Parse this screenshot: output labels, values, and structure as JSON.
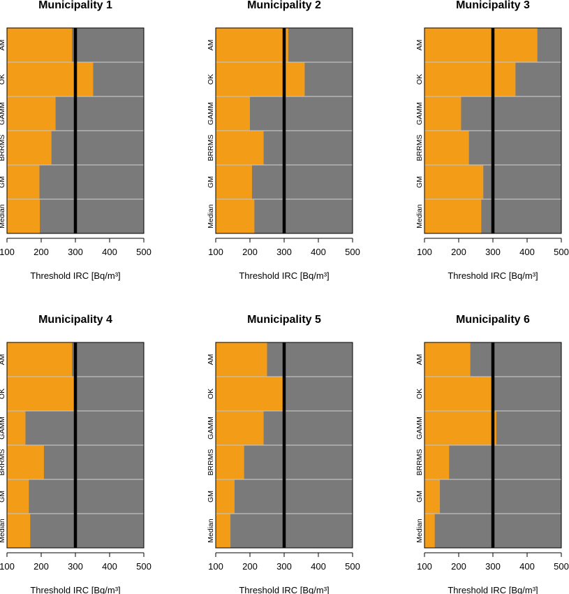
{
  "chart_data": [
    {
      "type": "bar",
      "orientation": "horizontal",
      "title": "Municipality 1",
      "categories": [
        "AM",
        "OK",
        "GAMM",
        "BRRMS",
        "GM",
        "Median"
      ],
      "values": [
        290,
        352,
        242,
        230,
        195,
        196
      ],
      "xlabel": "Threshold IRC [Bq/m³]",
      "ylabel": "",
      "xlim": [
        100,
        500
      ],
      "xticks": [
        "100",
        "200",
        "300",
        "400",
        "500"
      ],
      "reference_line": 300
    },
    {
      "type": "bar",
      "orientation": "horizontal",
      "title": "Municipality 2",
      "categories": [
        "AM",
        "OK",
        "GAMM",
        "BRRMS",
        "GM",
        "Median"
      ],
      "values": [
        312,
        360,
        200,
        240,
        206,
        213
      ],
      "xlabel": "Threshold IRC [Bq/m³]",
      "ylabel": "",
      "xlim": [
        100,
        500
      ],
      "xticks": [
        "100",
        "200",
        "300",
        "400",
        "500"
      ],
      "reference_line": 300
    },
    {
      "type": "bar",
      "orientation": "horizontal",
      "title": "Municipality 3",
      "categories": [
        "AM",
        "OK",
        "GAMM",
        "BRRMS",
        "GM",
        "Median"
      ],
      "values": [
        430,
        366,
        207,
        230,
        272,
        266
      ],
      "xlabel": "Threshold IRC [Bq/m³]",
      "ylabel": "",
      "xlim": [
        100,
        500
      ],
      "xticks": [
        "100",
        "200",
        "300",
        "400",
        "500"
      ],
      "reference_line": 300
    },
    {
      "type": "bar",
      "orientation": "horizontal",
      "title": "Municipality 4",
      "categories": [
        "AM",
        "OK",
        "GAMM",
        "BRRMS",
        "GM",
        "Median"
      ],
      "values": [
        290,
        302,
        154,
        208,
        164,
        168
      ],
      "xlabel": "Threshold IRC [Bq/m³]",
      "ylabel": "",
      "xlim": [
        100,
        500
      ],
      "xticks": [
        "100",
        "200",
        "300",
        "400",
        "500"
      ],
      "reference_line": 300
    },
    {
      "type": "bar",
      "orientation": "horizontal",
      "title": "Municipality 5",
      "categories": [
        "AM",
        "OK",
        "GAMM",
        "BRRMS",
        "GM",
        "Median"
      ],
      "values": [
        250,
        296,
        240,
        183,
        155,
        143
      ],
      "xlabel": "Threshold IRC [Bq/m³]",
      "ylabel": "",
      "xlim": [
        100,
        500
      ],
      "xticks": [
        "100",
        "200",
        "300",
        "400",
        "500"
      ],
      "reference_line": 300
    },
    {
      "type": "bar",
      "orientation": "horizontal",
      "title": "Municipality 6",
      "categories": [
        "AM",
        "OK",
        "GAMM",
        "BRRMS",
        "GM",
        "Median"
      ],
      "values": [
        234,
        300,
        310,
        172,
        145,
        130
      ],
      "xlabel": "Threshold IRC [Bq/m³]",
      "ylabel": "",
      "xlim": [
        100,
        500
      ],
      "xticks": [
        "100",
        "200",
        "300",
        "400",
        "500"
      ],
      "reference_line": 300
    }
  ],
  "colors": {
    "bar": "#f39c18",
    "background": "#7a7a7a",
    "separator": "#c0c0c0",
    "reference_line": "#000000",
    "frame": "#000000"
  }
}
